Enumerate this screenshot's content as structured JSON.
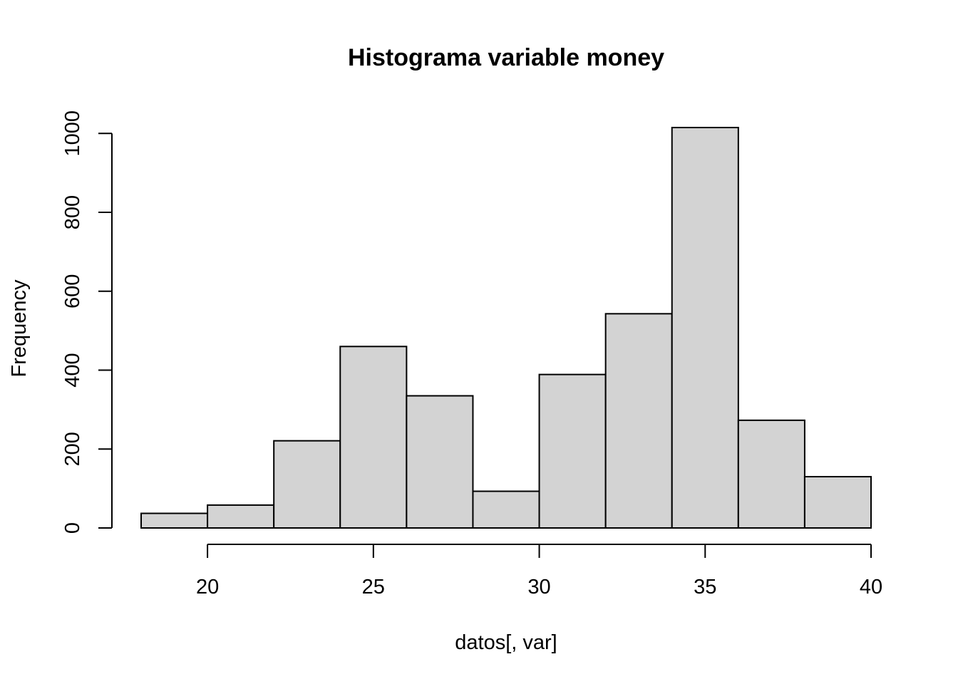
{
  "chart_data": {
    "type": "bar",
    "title": "Histograma variable money",
    "xlabel": "datos[, var]",
    "ylabel": "Frequency",
    "bins": [
      {
        "x0": 18,
        "x1": 20,
        "count": 37
      },
      {
        "x0": 20,
        "x1": 22,
        "count": 58
      },
      {
        "x0": 22,
        "x1": 24,
        "count": 221
      },
      {
        "x0": 24,
        "x1": 26,
        "count": 460
      },
      {
        "x0": 26,
        "x1": 28,
        "count": 335
      },
      {
        "x0": 28,
        "x1": 30,
        "count": 93
      },
      {
        "x0": 30,
        "x1": 32,
        "count": 389
      },
      {
        "x0": 32,
        "x1": 34,
        "count": 543
      },
      {
        "x0": 34,
        "x1": 36,
        "count": 1015
      },
      {
        "x0": 36,
        "x1": 38,
        "count": 273
      },
      {
        "x0": 38,
        "x1": 40,
        "count": 130
      }
    ],
    "xlim": [
      18,
      40
    ],
    "ylim": [
      0,
      1015
    ],
    "x_ticks": [
      20,
      25,
      30,
      35,
      40
    ],
    "y_ticks": [
      0,
      200,
      400,
      600,
      800,
      1000
    ],
    "x_tick_labels": [
      "20",
      "25",
      "30",
      "35",
      "40"
    ],
    "y_tick_labels": [
      "0",
      "200",
      "400",
      "600",
      "800",
      "1000"
    ],
    "grid": false,
    "legend": "none",
    "colors": {
      "bar_fill": "#d3d3d3",
      "bar_stroke": "#000000"
    }
  }
}
